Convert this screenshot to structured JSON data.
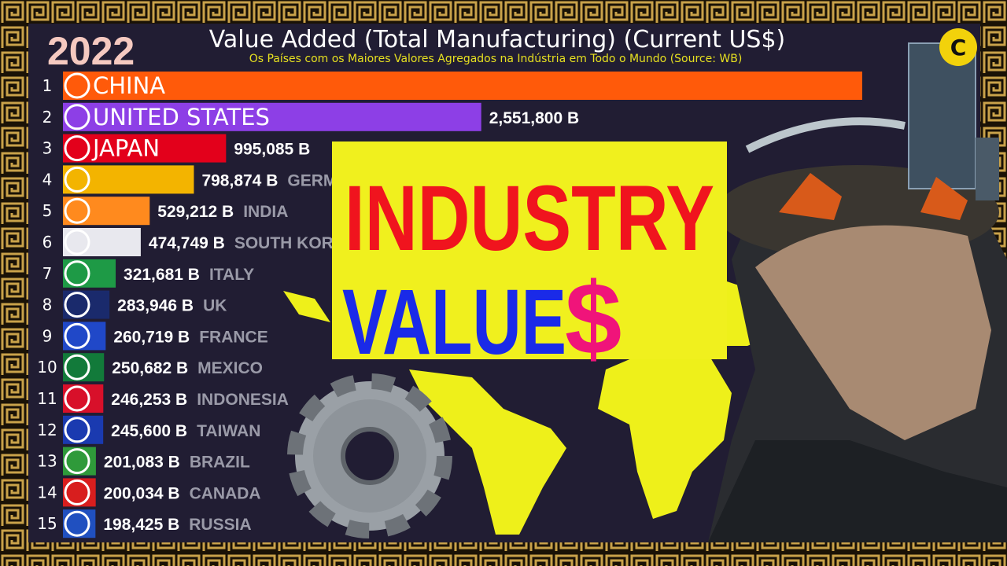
{
  "chart_data": {
    "type": "bar",
    "orientation": "horizontal",
    "year": "2022",
    "title": "Value Added (Total Manufacturing) (Current US$)",
    "subtitle": "Os Países com os Maiores Valores Agregados na Indústria em Todo o Mundo (Source: WB)",
    "ranks": [
      1,
      2,
      3,
      4,
      5,
      6,
      7,
      8,
      9,
      10,
      11,
      12,
      13,
      14,
      15
    ],
    "categories": [
      "CHINA",
      "UNITED STATES",
      "JAPAN",
      "GERMANY",
      "INDIA",
      "SOUTH KOREA",
      "ITALY",
      "UK",
      "FRANCE",
      "MEXICO",
      "INDONESIA",
      "TAIWAN",
      "BRAZIL",
      "CANADA",
      "RUSSIA"
    ],
    "values": [
      4876000,
      2551800,
      995085,
      798874,
      529212,
      474749,
      321681,
      283946,
      260719,
      250682,
      246253,
      245600,
      201083,
      200034,
      198425
    ],
    "value_labels": [
      null,
      "2,551,800 B",
      "995,085 B",
      "798,874 B",
      "529,212 B",
      "474,749 B",
      "321,681 B",
      "283,946 B",
      "260,719 B",
      "250,682 B",
      "246,253 B",
      "245,600 B",
      "201,083 B",
      "200,034 B",
      "198,425 B"
    ],
    "colors": [
      "#ff5a0a",
      "#8d3fe6",
      "#e3001b",
      "#f3b400",
      "#ff8a1e",
      "#e8e8ee",
      "#1e9a46",
      "#1a2a6c",
      "#2048c8",
      "#127a3a",
      "#d8102a",
      "#1a3ab0",
      "#2f9a3a",
      "#d81e1e",
      "#2050c0"
    ],
    "overlay_text": [
      "INDUSTRY",
      "VALUE",
      "$"
    ],
    "logo": "C"
  }
}
